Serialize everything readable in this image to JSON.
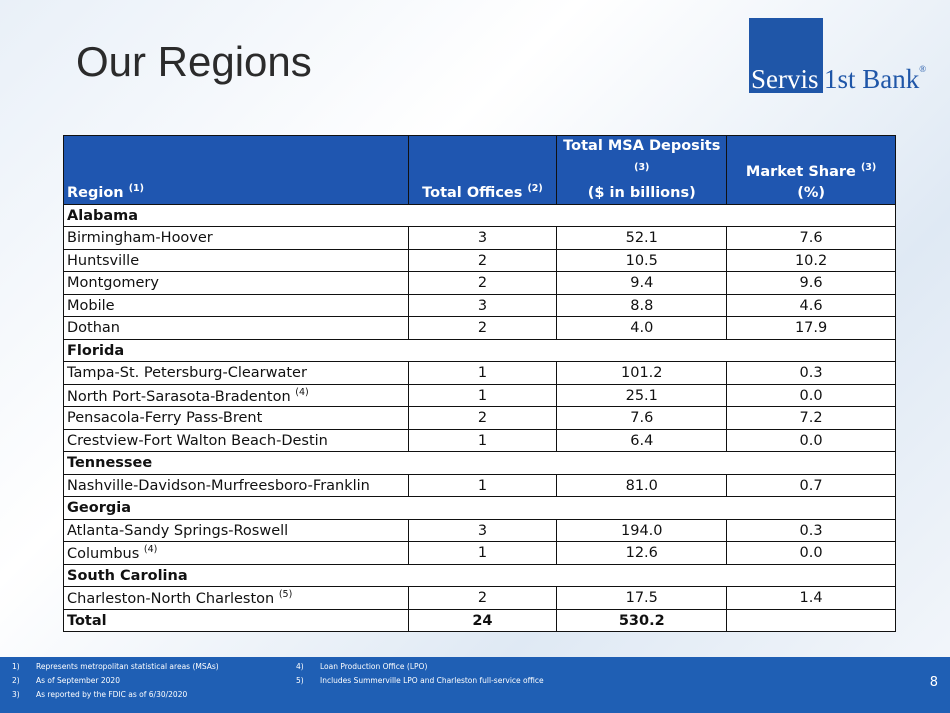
{
  "header": {
    "title": "Our Regions",
    "logo": {
      "left": "Servis",
      "right": "1st Bank",
      "mark": "®"
    }
  },
  "table": {
    "columns": [
      {
        "label": "Region",
        "note": "(1)"
      },
      {
        "label": "Total Offices",
        "note": "(2)"
      },
      {
        "label": "Total MSA Deposits",
        "note": "(3)",
        "sublabel": "($ in billions)"
      },
      {
        "label": "Market Share",
        "note": "(3)",
        "sublabel": "(%)"
      }
    ],
    "groups": [
      {
        "name": "Alabama",
        "rows": [
          {
            "region": "Birmingham-Hoover",
            "offices": "3",
            "deposits": "52.1",
            "share": "7.6"
          },
          {
            "region": "Huntsville",
            "offices": "2",
            "deposits": "10.5",
            "share": "10.2"
          },
          {
            "region": "Montgomery",
            "offices": "2",
            "deposits": "9.4",
            "share": "9.6"
          },
          {
            "region": "Mobile",
            "offices": "3",
            "deposits": "8.8",
            "share": "4.6"
          },
          {
            "region": "Dothan",
            "offices": "2",
            "deposits": "4.0",
            "share": "17.9"
          }
        ]
      },
      {
        "name": "Florida",
        "rows": [
          {
            "region": "Tampa-St. Petersburg-Clearwater",
            "offices": "1",
            "deposits": "101.2",
            "share": "0.3"
          },
          {
            "region": "North Port-Sarasota-Bradenton",
            "note": "(4)",
            "offices": "1",
            "deposits": "25.1",
            "share": "0.0"
          },
          {
            "region": "Pensacola-Ferry Pass-Brent",
            "offices": "2",
            "deposits": "7.6",
            "share": "7.2"
          },
          {
            "region": "Crestview-Fort Walton Beach-Destin",
            "offices": "1",
            "deposits": "6.4",
            "share": "0.0"
          }
        ]
      },
      {
        "name": "Tennessee",
        "rows": [
          {
            "region": "Nashville-Davidson-Murfreesboro-Franklin",
            "offices": "1",
            "deposits": "81.0",
            "share": "0.7"
          }
        ]
      },
      {
        "name": "Georgia",
        "rows": [
          {
            "region": "Atlanta-Sandy Springs-Roswell",
            "offices": "3",
            "deposits": "194.0",
            "share": "0.3"
          },
          {
            "region": "Columbus",
            "note": "(4)",
            "offices": "1",
            "deposits": "12.6",
            "share": "0.0"
          }
        ]
      },
      {
        "name": "South Carolina",
        "rows": [
          {
            "region": "Charleston-North Charleston",
            "note": "(5)",
            "offices": "2",
            "deposits": "17.5",
            "share": "1.4"
          }
        ]
      }
    ],
    "total": {
      "region": "Total",
      "offices": "24",
      "deposits": "530.2"
    }
  },
  "footnotes": [
    {
      "marker": "1)",
      "text": "Represents metropolitan statistical areas (MSAs)"
    },
    {
      "marker": "2)",
      "text": "As of September 2020"
    },
    {
      "marker": "3)",
      "text": "As reported by the FDIC as of 6/30/2020"
    },
    {
      "marker": "4)",
      "text": "Loan Production Office (LPO)"
    },
    {
      "marker": "5)",
      "text": "Includes Summerville LPO and Charleston full-service office"
    }
  ],
  "page_number": "8"
}
